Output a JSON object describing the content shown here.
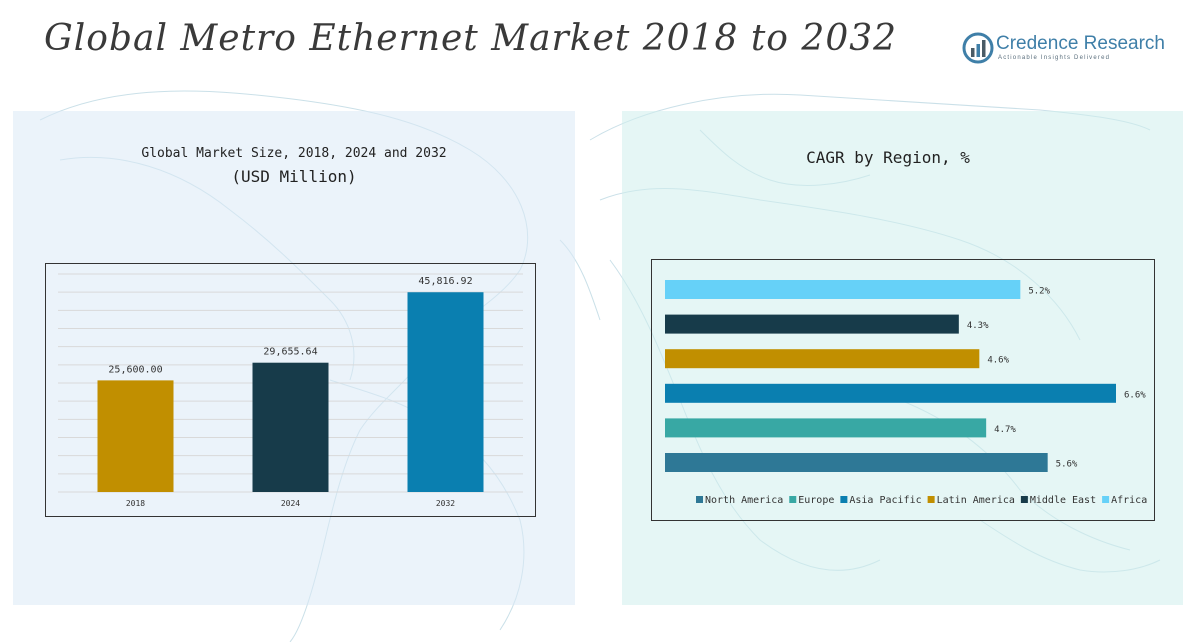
{
  "header": {
    "title": "Global Metro Ethernet Market 2018 to 2032",
    "brand_name": "Credence Research",
    "brand_tagline": "Actionable Insights Delivered"
  },
  "left_panel": {
    "title_line1": "Global Market Size, 2018, 2024 and 2032",
    "title_line2": "(USD Million)"
  },
  "right_panel": {
    "title": "CAGR by Region, %"
  },
  "chart_data": [
    {
      "type": "bar",
      "title": "Global Market Size, 2018, 2024 and 2032",
      "ylabel": "(USD Million)",
      "categories": [
        "2018",
        "2024",
        "2032"
      ],
      "values": [
        25600.0,
        29655.64,
        45816.92
      ],
      "value_labels": [
        "25,600.00",
        "29,655.64",
        "45,816.92"
      ],
      "colors": [
        "#c18f00",
        "#173b4a",
        "#0a7fb0"
      ],
      "ylim": [
        0,
        50000
      ],
      "grid": true
    },
    {
      "type": "bar",
      "orientation": "horizontal",
      "title": "CAGR by Region, %",
      "categories": [
        "North America",
        "Europe",
        "Asia Pacific",
        "Latin America",
        "Middle East",
        "Africa"
      ],
      "values": [
        5.6,
        4.7,
        6.6,
        4.6,
        4.3,
        5.2
      ],
      "value_labels": [
        "5.6%",
        "4.7%",
        "6.6%",
        "4.6%",
        "4.3%",
        "5.2%"
      ],
      "colors": [
        "#2e7896",
        "#38a8a4",
        "#0a7fb0",
        "#c18f00",
        "#173b4a",
        "#66d1f8"
      ],
      "xlim": [
        0,
        6.6
      ],
      "legend": "bottom",
      "grid": false
    }
  ]
}
